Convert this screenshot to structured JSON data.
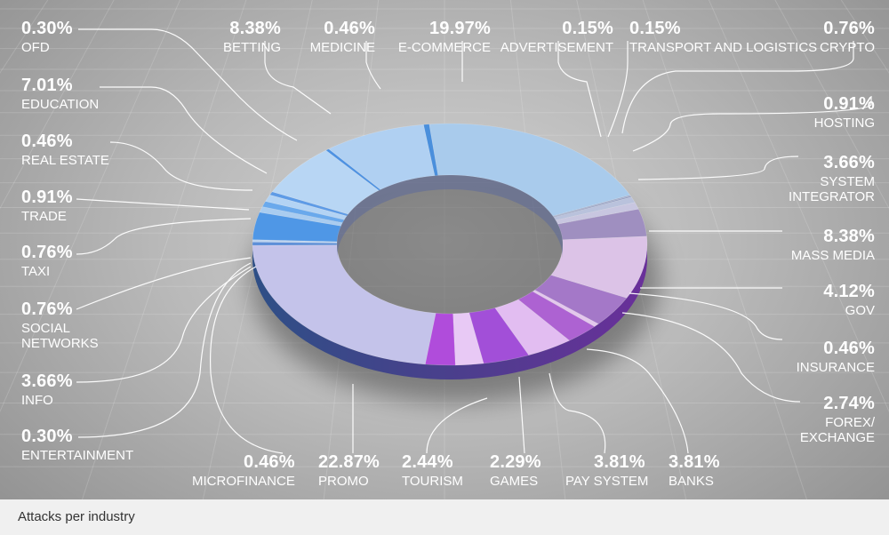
{
  "caption": "Attacks per industry",
  "chart_data": {
    "type": "pie",
    "title": "Attacks per industry",
    "donut": true,
    "unit": "%",
    "slices": [
      {
        "label": "E-COMMERCE",
        "pct_text": "19.97%",
        "value": 19.97,
        "color": "#a9cbec"
      },
      {
        "label": "ADVERTISEMENT",
        "pct_text": "0.15%",
        "value": 0.15,
        "color": "#9ca8c8"
      },
      {
        "label": "TRANSPORT AND LOGISTICS",
        "pct_text": "0.15%",
        "value": 0.15,
        "color": "#8e99be"
      },
      {
        "label": "CRYPTO",
        "pct_text": "0.76%",
        "value": 0.76,
        "color": "#b9c2dc"
      },
      {
        "label": "HOSTING",
        "pct_text": "0.91%",
        "value": 0.91,
        "color": "#c8c6e0"
      },
      {
        "label": "SYSTEM INTEGRATOR",
        "pct_text": "3.66%",
        "value": 3.66,
        "color": "#9f8fc0"
      },
      {
        "label": "MASS MEDIA",
        "pct_text": "8.38%",
        "value": 8.38,
        "color": "#dcc3e7"
      },
      {
        "label": "GOV",
        "pct_text": "4.12%",
        "value": 4.12,
        "color": "#a478c8"
      },
      {
        "label": "INSURANCE",
        "pct_text": "0.46%",
        "value": 0.46,
        "color": "#e3c8ec"
      },
      {
        "label": "FOREX/ EXCHANGE",
        "pct_text": "2.74%",
        "value": 2.74,
        "color": "#ad62d2"
      },
      {
        "label": "BANKS",
        "pct_text": "3.81%",
        "value": 3.81,
        "color": "#e2bdf1"
      },
      {
        "label": "PAY SYSTEM",
        "pct_text": "3.81%",
        "value": 3.81,
        "color": "#a24fd8"
      },
      {
        "label": "GAMES",
        "pct_text": "2.29%",
        "value": 2.29,
        "color": "#e8c9f5"
      },
      {
        "label": "TOURISM",
        "pct_text": "2.44%",
        "value": 2.44,
        "color": "#b04cdb"
      },
      {
        "label": "PROMO",
        "pct_text": "22.87%",
        "value": 22.87,
        "color": "#c4c3ea"
      },
      {
        "label": "MICROFINANCE",
        "pct_text": "0.46%",
        "value": 0.46,
        "color": "#5d8fd8"
      },
      {
        "label": "ENTERTAINMENT",
        "pct_text": "0.30%",
        "value": 0.3,
        "color": "#bcd3f0"
      },
      {
        "label": "INFO",
        "pct_text": "3.66%",
        "value": 3.66,
        "color": "#4f97e6"
      },
      {
        "label": "SOCIAL NETWORKS",
        "pct_text": "0.76%",
        "value": 0.76,
        "color": "#a9ccf0"
      },
      {
        "label": "TAXI",
        "pct_text": "0.76%",
        "value": 0.76,
        "color": "#6aa9ec"
      },
      {
        "label": "TRADE",
        "pct_text": "0.91%",
        "value": 0.91,
        "color": "#b3d3f4"
      },
      {
        "label": "REAL ESTATE",
        "pct_text": "0.46%",
        "value": 0.46,
        "color": "#5e9be6"
      },
      {
        "label": "EDUCATION",
        "pct_text": "7.01%",
        "value": 7.01,
        "color": "#b8d6f4"
      },
      {
        "label": "OFD",
        "pct_text": "0.30%",
        "value": 0.3,
        "color": "#4e92e2"
      },
      {
        "label": "BETTING",
        "pct_text": "8.38%",
        "value": 8.38,
        "color": "#b0d0f2"
      },
      {
        "label": "MEDICINE",
        "pct_text": "0.46%",
        "value": 0.46,
        "color": "#4a8fdc"
      }
    ]
  }
}
